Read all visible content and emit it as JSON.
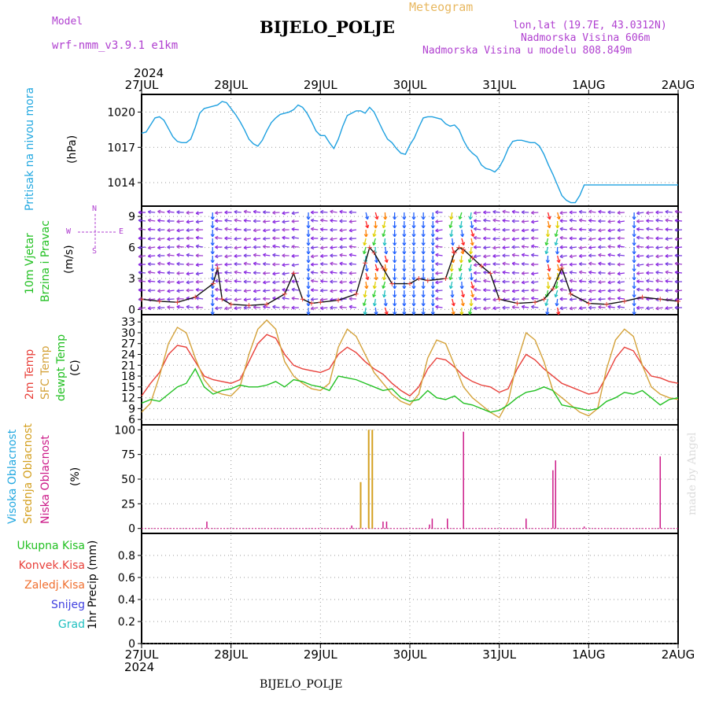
{
  "header": {
    "model_label": "Model",
    "model_name": "wrf-nmm_v3.9.1 e1km",
    "product": "Meteogram",
    "station": "BIJELO_POLJE",
    "lonlat": "lon,lat (19.7E, 43.0312N)",
    "elevation": "Nadmorska Visina 606m",
    "model_elevation": "Nadmorska Visina u modelu 808.849m",
    "year": "2024",
    "footer_station": "BIJELO_POLJE",
    "watermark": "made by Angel"
  },
  "colors": {
    "pressure": "#1ea0e0",
    "temp2m": "#e8403a",
    "sfctemp": "#d4a23a",
    "dewpt": "#22c022",
    "cloud_high": "#22a8e0",
    "cloud_mid": "#d4a020",
    "cloud_low": "#cc1a88",
    "purple": "#b040d0",
    "precip_total": "#22c022",
    "precip_conv": "#e8403a",
    "precip_frz": "#f07030",
    "snow": "#4040e0",
    "hail": "#20c0c0"
  },
  "labels": {
    "pressure_name": "Pritisak na nivou mora",
    "pressure_unit": "(hPa)",
    "wind_name1": "10m Vjetar",
    "wind_name2": "Brzina i Pravac",
    "wind_unit": "(m/s)",
    "compass_n": "N",
    "compass_s": "S",
    "compass_w": "W",
    "compass_e": "E",
    "temp_2m": "2m Temp",
    "temp_sfc": "SFC Temp",
    "temp_dew": "dewpt Temp",
    "temp_unit": "(C)",
    "cloud_high": "Visoka Oblacnost",
    "cloud_mid": "Srednja Oblacnost",
    "cloud_low": "Niska Oblacnost",
    "cloud_unit": "(%)",
    "precip_total": "Ukupna Kisa",
    "precip_conv": "Konvek.Kisa",
    "precip_frz": "Zaledj.Kisa",
    "precip_snow": "Snijeg",
    "precip_hail": "Grad",
    "precip_unit": "1hr Precip (mm)"
  },
  "chart_data": [
    {
      "type": "line",
      "name": "pressure",
      "x_ticks": [
        "27JUL",
        "28JUL",
        "29JUL",
        "30JUL",
        "31JUL",
        "1AUG",
        "2AUG"
      ],
      "ylim": [
        1012,
        1021.5
      ],
      "y_ticks": [
        1014,
        1017,
        1020
      ],
      "series": [
        {
          "key": "pressure",
          "x": [
            0,
            0.05,
            0.1,
            0.15,
            0.2,
            0.25,
            0.3,
            0.35,
            0.4,
            0.45,
            0.5,
            0.55,
            0.6,
            0.65,
            0.7,
            0.75,
            0.8,
            0.85,
            0.9,
            0.95,
            1.0,
            1.05,
            1.1,
            1.15,
            1.2,
            1.25,
            1.3,
            1.35,
            1.4,
            1.45,
            1.5,
            1.55,
            1.6,
            1.65,
            1.7,
            1.75,
            1.8,
            1.85,
            1.9,
            1.95,
            2.0,
            2.05,
            2.1,
            2.15,
            2.2,
            2.25,
            2.3,
            2.35,
            2.4,
            2.45,
            2.5,
            2.55,
            2.6,
            2.65,
            2.7,
            2.75,
            2.8,
            2.85,
            2.9,
            2.95,
            3.0,
            3.05,
            3.1,
            3.15,
            3.2,
            3.25,
            3.3,
            3.35,
            3.4,
            3.45,
            3.5,
            3.55,
            3.6,
            3.65,
            3.7,
            3.75,
            3.8,
            3.85,
            3.9,
            3.95,
            4.0,
            4.05,
            4.1,
            4.15,
            4.2,
            4.25,
            4.3,
            4.35,
            4.4,
            4.45,
            4.5,
            4.55,
            4.6,
            4.65,
            4.7,
            4.75,
            4.8,
            4.85,
            4.9,
            4.95,
            5.0,
            5.05,
            5.1,
            5.15,
            5.2,
            5.25,
            5.3,
            5.35,
            5.4,
            5.45,
            5.5,
            5.55,
            5.6,
            5.65,
            5.7,
            5.75,
            5.8,
            5.85,
            5.9,
            5.95,
            6.0
          ],
          "values": [
            1018.2,
            1018.3,
            1018.9,
            1019.5,
            1019.6,
            1019.3,
            1018.6,
            1017.9,
            1017.5,
            1017.4,
            1017.4,
            1017.7,
            1018.7,
            1019.9,
            1020.3,
            1020.4,
            1020.5,
            1020.6,
            1020.9,
            1020.8,
            1020.3,
            1019.8,
            1019.2,
            1018.5,
            1017.7,
            1017.3,
            1017.1,
            1017.6,
            1018.4,
            1019.1,
            1019.5,
            1019.8,
            1019.9,
            1020.0,
            1020.2,
            1020.6,
            1020.4,
            1019.9,
            1019.2,
            1018.4,
            1018.0,
            1018.0,
            1017.4,
            1016.9,
            1017.7,
            1018.8,
            1019.7,
            1019.9,
            1020.1,
            1020.1,
            1019.9,
            1020.4,
            1020.0,
            1019.2,
            1018.4,
            1017.7,
            1017.4,
            1016.9,
            1016.5,
            1016.4,
            1017.2,
            1017.8,
            1018.7,
            1019.5,
            1019.6,
            1019.6,
            1019.5,
            1019.4,
            1019.0,
            1018.8,
            1018.9,
            1018.5,
            1017.6,
            1016.9,
            1016.5,
            1016.2,
            1015.5,
            1015.2,
            1015.1,
            1014.9,
            1015.3,
            1016.0,
            1016.9,
            1017.5,
            1017.6,
            1017.6,
            1017.5,
            1017.4,
            1017.4,
            1017.1,
            1016.4,
            1015.5,
            1014.7,
            1013.8,
            1012.9,
            1012.5,
            1012.3,
            1012.3,
            1012.9,
            1013.8,
            1013.8,
            1013.8,
            1013.8,
            1013.8,
            1013.8,
            1013.8,
            1013.8,
            1013.8,
            1013.8,
            1013.8,
            1013.8,
            1013.8,
            1013.8,
            1013.8,
            1013.8,
            1013.8,
            1013.8,
            1013.8,
            1013.8,
            1013.8,
            1013.8
          ]
        }
      ]
    },
    {
      "type": "line",
      "name": "wind",
      "x_ticks": [
        "27JUL",
        "28JUL",
        "29JUL",
        "30JUL",
        "31JUL",
        "1AUG",
        "2AUG"
      ],
      "ylim": [
        -0.5,
        10
      ],
      "y_ticks": [
        0,
        3,
        6,
        9
      ],
      "series": [
        {
          "key": "wind_speed",
          "x": [
            0,
            0.2,
            0.4,
            0.6,
            0.8,
            0.85,
            0.9,
            1.0,
            1.2,
            1.4,
            1.6,
            1.7,
            1.8,
            1.9,
            2.0,
            2.2,
            2.4,
            2.5,
            2.55,
            2.6,
            2.7,
            2.8,
            3.0,
            3.1,
            3.2,
            3.4,
            3.5,
            3.55,
            3.6,
            3.7,
            3.8,
            3.9,
            4.0,
            4.2,
            4.4,
            4.5,
            4.6,
            4.7,
            4.8,
            5.0,
            5.2,
            5.4,
            5.6,
            5.8,
            6.0
          ],
          "values": [
            1.0,
            0.8,
            0.7,
            1.2,
            2.5,
            4.0,
            1.0,
            0.5,
            0.4,
            0.5,
            1.5,
            3.5,
            1.0,
            0.6,
            0.7,
            0.9,
            1.5,
            4.5,
            6.0,
            5.5,
            4.0,
            2.5,
            2.5,
            3.0,
            2.8,
            3.0,
            5.5,
            6.0,
            5.8,
            5.0,
            4.2,
            3.5,
            1.0,
            0.6,
            0.7,
            1.0,
            2.0,
            4.0,
            1.5,
            0.6,
            0.5,
            0.8,
            1.2,
            1.0,
            0.8
          ]
        }
      ]
    },
    {
      "type": "line",
      "name": "temperature",
      "x_ticks": [
        "27JUL",
        "28JUL",
        "29JUL",
        "30JUL",
        "31JUL",
        "1AUG",
        "2AUG"
      ],
      "ylim": [
        4.5,
        35
      ],
      "y_ticks": [
        6,
        9,
        12,
        15,
        18,
        21,
        24,
        27,
        30,
        33
      ],
      "series": [
        {
          "key": "temp2m",
          "name": "2m Temp",
          "x": [
            0,
            0.1,
            0.2,
            0.3,
            0.4,
            0.5,
            0.6,
            0.7,
            0.8,
            0.9,
            1.0,
            1.1,
            1.2,
            1.3,
            1.4,
            1.5,
            1.6,
            1.7,
            1.8,
            1.9,
            2.0,
            2.1,
            2.2,
            2.3,
            2.4,
            2.5,
            2.6,
            2.7,
            2.8,
            2.9,
            3.0,
            3.1,
            3.2,
            3.3,
            3.4,
            3.5,
            3.6,
            3.7,
            3.8,
            3.9,
            4.0,
            4.1,
            4.2,
            4.3,
            4.4,
            4.5,
            4.6,
            4.7,
            4.8,
            4.9,
            5.0,
            5.1,
            5.2,
            5.3,
            5.4,
            5.5,
            5.6,
            5.7,
            5.8,
            5.9,
            6.0
          ],
          "values": [
            12.5,
            16,
            19,
            24,
            26.5,
            26,
            22,
            18,
            17,
            16.5,
            16,
            17,
            22,
            27,
            29.5,
            28.5,
            24,
            21,
            20,
            19.5,
            19,
            20,
            24,
            26,
            24.5,
            22,
            20,
            18.5,
            16,
            14,
            12.5,
            15,
            20,
            23,
            22.5,
            20.5,
            18,
            16.5,
            15.5,
            15,
            13.5,
            14.5,
            20,
            24,
            22.5,
            20,
            18,
            16,
            15,
            14,
            13,
            13.5,
            18,
            23,
            26,
            25,
            21,
            18,
            17.5,
            16.5,
            16
          ]
        },
        {
          "key": "sfctemp",
          "name": "SFC Temp",
          "x": [
            0,
            0.1,
            0.2,
            0.3,
            0.4,
            0.5,
            0.6,
            0.7,
            0.8,
            0.9,
            1.0,
            1.1,
            1.2,
            1.3,
            1.4,
            1.5,
            1.6,
            1.7,
            1.8,
            1.9,
            2.0,
            2.1,
            2.2,
            2.3,
            2.4,
            2.5,
            2.6,
            2.7,
            2.8,
            2.9,
            3.0,
            3.1,
            3.2,
            3.3,
            3.4,
            3.5,
            3.6,
            3.7,
            3.8,
            3.9,
            4.0,
            4.1,
            4.2,
            4.3,
            4.4,
            4.5,
            4.6,
            4.7,
            4.8,
            4.9,
            5.0,
            5.1,
            5.2,
            5.3,
            5.4,
            5.5,
            5.6,
            5.7,
            5.8,
            5.9,
            6.0
          ],
          "values": [
            8,
            10.5,
            18,
            27,
            31.5,
            30,
            23,
            17,
            14,
            13,
            12.5,
            15,
            24,
            31,
            33.5,
            31,
            22,
            18,
            16,
            14.5,
            14,
            16,
            26,
            31,
            29,
            24,
            19,
            16,
            13,
            11,
            10,
            13,
            23,
            28,
            27,
            21,
            15,
            12,
            10,
            8,
            6.5,
            11,
            22,
            30,
            28,
            22,
            14,
            12,
            10,
            8,
            7,
            9,
            20,
            28,
            31,
            29,
            21,
            15,
            13,
            12,
            11.5
          ]
        },
        {
          "key": "dewpt",
          "name": "dewpt Temp",
          "x": [
            0,
            0.1,
            0.2,
            0.3,
            0.4,
            0.5,
            0.6,
            0.7,
            0.8,
            0.9,
            1.0,
            1.1,
            1.2,
            1.3,
            1.4,
            1.5,
            1.6,
            1.7,
            1.8,
            1.9,
            2.0,
            2.1,
            2.2,
            2.3,
            2.4,
            2.5,
            2.6,
            2.7,
            2.8,
            2.9,
            3.0,
            3.1,
            3.2,
            3.3,
            3.4,
            3.5,
            3.6,
            3.7,
            3.8,
            3.9,
            4.0,
            4.1,
            4.2,
            4.3,
            4.4,
            4.5,
            4.6,
            4.7,
            4.8,
            4.9,
            5.0,
            5.1,
            5.2,
            5.3,
            5.4,
            5.5,
            5.6,
            5.7,
            5.8,
            5.9,
            6.0
          ],
          "values": [
            10.5,
            11.5,
            11,
            13,
            15,
            16,
            20,
            15,
            13,
            14,
            14.5,
            15.5,
            15,
            15,
            15.5,
            16.5,
            15,
            17,
            16.5,
            15.5,
            15,
            14,
            18,
            17.5,
            17,
            16,
            15,
            14,
            14.5,
            12,
            11,
            11.5,
            14,
            12,
            11.5,
            12.5,
            10.5,
            10,
            9,
            8,
            8.5,
            10,
            12,
            13.5,
            14,
            15,
            14,
            10,
            9.5,
            9,
            8.5,
            9,
            11,
            12,
            13.5,
            13,
            14,
            12,
            10,
            11.5,
            12
          ]
        }
      ]
    },
    {
      "type": "bar",
      "name": "cloudiness",
      "x_ticks": [
        "27JUL",
        "28JUL",
        "29JUL",
        "30JUL",
        "31JUL",
        "1AUG",
        "2AUG"
      ],
      "ylim": [
        -5,
        105
      ],
      "y_ticks": [
        0,
        25,
        50,
        75,
        100
      ],
      "series": [
        {
          "key": "cloud_mid",
          "name": "Srednja Oblacnost",
          "x": [
            2.45,
            2.54,
            2.58
          ],
          "values": [
            47,
            100,
            100
          ]
        },
        {
          "key": "cloud_low",
          "name": "Niska Oblacnost",
          "x": [
            0.73,
            2.35,
            2.7,
            2.74,
            3.22,
            3.25,
            3.42,
            3.6,
            4.3,
            4.6,
            4.63,
            4.95,
            5.8
          ],
          "values": [
            7,
            3,
            7,
            7,
            4,
            10,
            10,
            98,
            10,
            59,
            69,
            2,
            73
          ]
        }
      ]
    },
    {
      "type": "bar",
      "name": "precipitation",
      "x_ticks": [
        "27JUL",
        "28JUL",
        "29JUL",
        "30JUL",
        "31JUL",
        "1AUG",
        "2AUG"
      ],
      "ylim": [
        0,
        1.0
      ],
      "y_ticks": [
        0,
        0.2,
        0.4,
        0.6,
        0.8
      ],
      "series": [
        {
          "key": "precip_total",
          "name": "Ukupna Kisa",
          "x": [],
          "values": []
        }
      ]
    }
  ]
}
